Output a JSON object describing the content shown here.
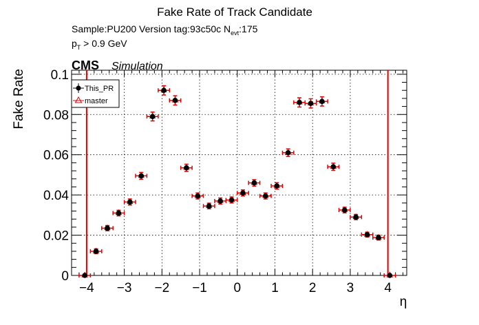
{
  "header": {
    "title": "Fake Rate of Track Candidate",
    "sample_line": "Sample:PU200   Version tag:93c50c  N",
    "nevt_sub": "evt",
    "nevt_value": ":175",
    "pt_p": "p",
    "pt_sub": "T",
    "pt_rest": " > 0.9 GeV",
    "cms": "CMS",
    "simulation": "Simulation"
  },
  "colors": {
    "this_pr": "#000000",
    "master": "#e00000",
    "errorbar": "#e00000"
  },
  "chart_data": {
    "type": "scatter",
    "xlabel": "η",
    "ylabel": "Fake Rate",
    "xlim": [
      -4.4,
      4.5
    ],
    "ylim": [
      0,
      0.102
    ],
    "x_ticks": [
      -4,
      -3,
      -2,
      -1,
      0,
      1,
      2,
      3,
      4
    ],
    "x_tick_labels": [
      "−4",
      "−3",
      "−2",
      "−1",
      "0",
      "1",
      "2",
      "3",
      "4"
    ],
    "y_ticks": [
      0,
      0.02,
      0.04,
      0.06,
      0.08,
      0.1
    ],
    "y_tick_labels": [
      "0",
      "0.02",
      "0.04",
      "0.06",
      "0.08",
      "0.1"
    ],
    "grid": true,
    "legend_position": "top-left",
    "x_bin_half_width": 0.15,
    "boundary_lines": [
      -4.0,
      4.0
    ],
    "series": [
      {
        "name": "This_PR",
        "marker": "filled-circle",
        "x": [
          -4.05,
          -3.75,
          -3.45,
          -3.15,
          -2.85,
          -2.55,
          -2.25,
          -1.95,
          -1.65,
          -1.35,
          -1.05,
          -0.75,
          -0.45,
          -0.15,
          0.15,
          0.45,
          0.75,
          1.05,
          1.35,
          1.65,
          1.95,
          2.25,
          2.55,
          2.85,
          3.15,
          3.45,
          3.75,
          4.05
        ],
        "y": [
          0.0,
          0.012,
          0.0235,
          0.031,
          0.0365,
          0.0495,
          0.079,
          0.092,
          0.087,
          0.0535,
          0.0395,
          0.0345,
          0.037,
          0.0375,
          0.041,
          0.046,
          0.0395,
          0.0445,
          0.061,
          0.086,
          0.0855,
          0.0865,
          0.054,
          0.0325,
          0.029,
          0.0203,
          0.0188,
          0.0
        ],
        "err": [
          0.0,
          0.0012,
          0.0013,
          0.0014,
          0.0015,
          0.0017,
          0.0022,
          0.0023,
          0.0023,
          0.0018,
          0.0015,
          0.0014,
          0.0015,
          0.0015,
          0.0015,
          0.0016,
          0.0015,
          0.0016,
          0.0019,
          0.0023,
          0.0023,
          0.0023,
          0.0018,
          0.0014,
          0.0013,
          0.0012,
          0.0012,
          0.0
        ]
      },
      {
        "name": "master",
        "marker": "open-triangle"
      }
    ]
  }
}
